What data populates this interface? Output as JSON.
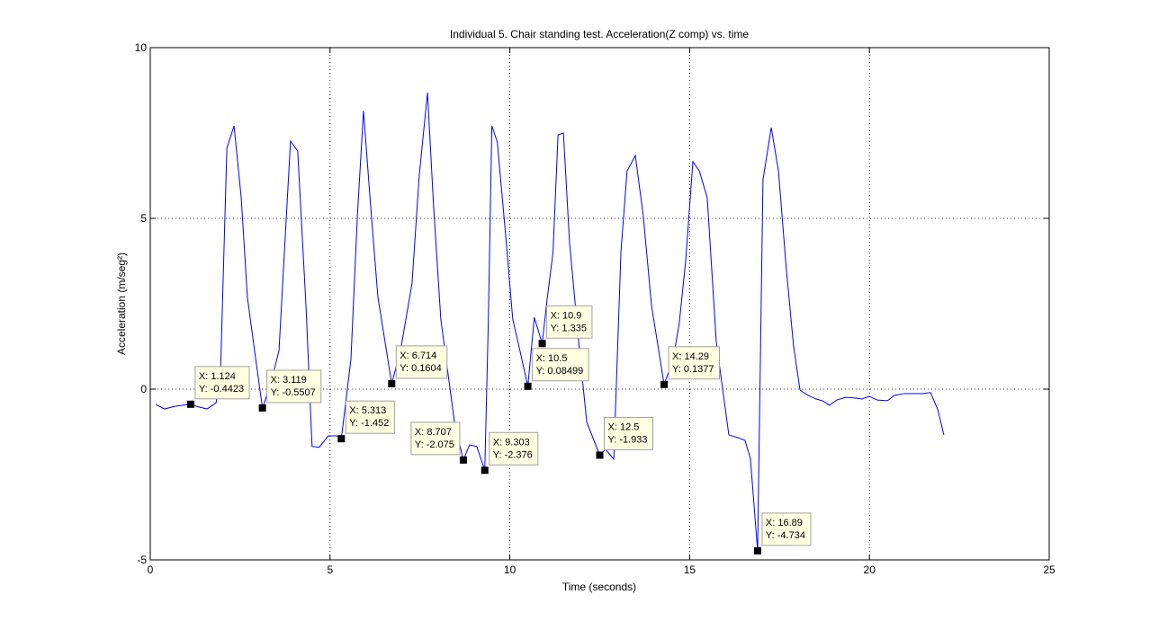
{
  "chart_data": {
    "type": "line",
    "title": "Individual 5. Chair standing test. Acceleration(Z comp) vs. time",
    "xlabel": "Time (seconds)",
    "ylabel": "Acceleration (m/seg²)",
    "xlim": [
      0,
      25
    ],
    "ylim": [
      -5,
      10
    ],
    "xticks": [
      0,
      5,
      10,
      15,
      20,
      25
    ],
    "yticks": [
      -5,
      0,
      5,
      10
    ],
    "grid": true,
    "series": [
      {
        "color": "#0000ff",
        "x": [
          0.15,
          0.4,
          0.7,
          1.124,
          1.3,
          1.58,
          1.83,
          1.95,
          2.13,
          2.33,
          2.53,
          2.7,
          2.9,
          3.119,
          3.33,
          3.58,
          3.9,
          4.1,
          4.33,
          4.5,
          4.7,
          4.95,
          5.2,
          5.313,
          5.58,
          5.76,
          5.93,
          6.13,
          6.33,
          6.714,
          6.96,
          7.28,
          7.48,
          7.71,
          7.88,
          8.08,
          8.46,
          8.707,
          8.88,
          9.08,
          9.303,
          9.4,
          9.5,
          9.65,
          9.88,
          10.08,
          10.28,
          10.5,
          10.68,
          10.9,
          11.03,
          11.2,
          11.34,
          11.49,
          11.66,
          11.96,
          12.14,
          12.5,
          12.66,
          12.89,
          13.09,
          13.26,
          13.49,
          13.71,
          13.94,
          14.29,
          14.54,
          14.71,
          14.89,
          15.09,
          15.27,
          15.49,
          15.74,
          16.09,
          16.34,
          16.54,
          16.69,
          16.89,
          17.04,
          17.27,
          17.47,
          17.69,
          17.89,
          18.07,
          18.29,
          18.52,
          18.69,
          18.89,
          19.09,
          19.34,
          19.6,
          19.79,
          19.99,
          20.22,
          20.5,
          20.7,
          20.97,
          21.22,
          21.47,
          21.7,
          21.9,
          22.07
        ],
        "values": [
          -0.45,
          -0.58,
          -0.5,
          -0.4423,
          -0.51,
          -0.58,
          -0.4,
          0.34,
          7.05,
          7.71,
          5.6,
          2.7,
          1.13,
          -0.5507,
          0.08,
          1.13,
          7.26,
          6.97,
          2.45,
          -1.68,
          -1.7,
          -1.37,
          -1.37,
          -1.452,
          0.87,
          5.08,
          8.15,
          5.34,
          2.7,
          0.1604,
          1.13,
          3.1,
          6.26,
          8.68,
          5.34,
          2.05,
          -0.97,
          -2.075,
          -1.63,
          -1.68,
          -2.376,
          1.92,
          7.71,
          7.24,
          4.55,
          2.05,
          1.13,
          0.08499,
          2.1,
          1.335,
          2.58,
          4.0,
          7.45,
          7.5,
          4.29,
          0.87,
          -0.97,
          -1.933,
          -1.76,
          -2.05,
          4.03,
          6.39,
          6.84,
          5.08,
          2.45,
          0.1377,
          0.87,
          1.92,
          3.76,
          6.66,
          6.39,
          5.6,
          1.39,
          -1.34,
          -1.42,
          -1.5,
          -2.03,
          -4.734,
          6.13,
          7.66,
          6.39,
          3.5,
          1.26,
          -0.03,
          -0.18,
          -0.29,
          -0.34,
          -0.47,
          -0.32,
          -0.24,
          -0.26,
          -0.29,
          -0.21,
          -0.32,
          -0.34,
          -0.18,
          -0.13,
          -0.13,
          -0.13,
          -0.1,
          -0.6,
          -1.34
        ]
      }
    ],
    "datatips": [
      {
        "x": 1.124,
        "y": -0.4423,
        "x_label": "X: 1.124",
        "y_label": "Y: -0.4423"
      },
      {
        "x": 3.119,
        "y": -0.5507,
        "x_label": "X: 3.119",
        "y_label": "Y: -0.5507"
      },
      {
        "x": 5.313,
        "y": -1.452,
        "x_label": "X: 5.313",
        "y_label": "Y: -1.452"
      },
      {
        "x": 6.714,
        "y": 0.1604,
        "x_label": "X: 6.714",
        "y_label": "Y: 0.1604"
      },
      {
        "x": 8.707,
        "y": -2.075,
        "x_label": "X: 8.707",
        "y_label": "Y: -2.075"
      },
      {
        "x": 9.303,
        "y": -2.376,
        "x_label": "X: 9.303",
        "y_label": "Y: -2.376"
      },
      {
        "x": 10.5,
        "y": 0.08499,
        "x_label": "X: 10.5",
        "y_label": "Y: 0.08499"
      },
      {
        "x": 10.9,
        "y": 1.335,
        "x_label": "X: 10.9",
        "y_label": "Y: 1.335"
      },
      {
        "x": 12.5,
        "y": -1.933,
        "x_label": "X: 12.5",
        "y_label": "Y: -1.933"
      },
      {
        "x": 14.29,
        "y": 0.1377,
        "x_label": "X: 14.29",
        "y_label": "Y: 0.1377"
      },
      {
        "x": 16.89,
        "y": -4.734,
        "x_label": "X: 16.89",
        "y_label": "Y: -4.734"
      }
    ]
  }
}
